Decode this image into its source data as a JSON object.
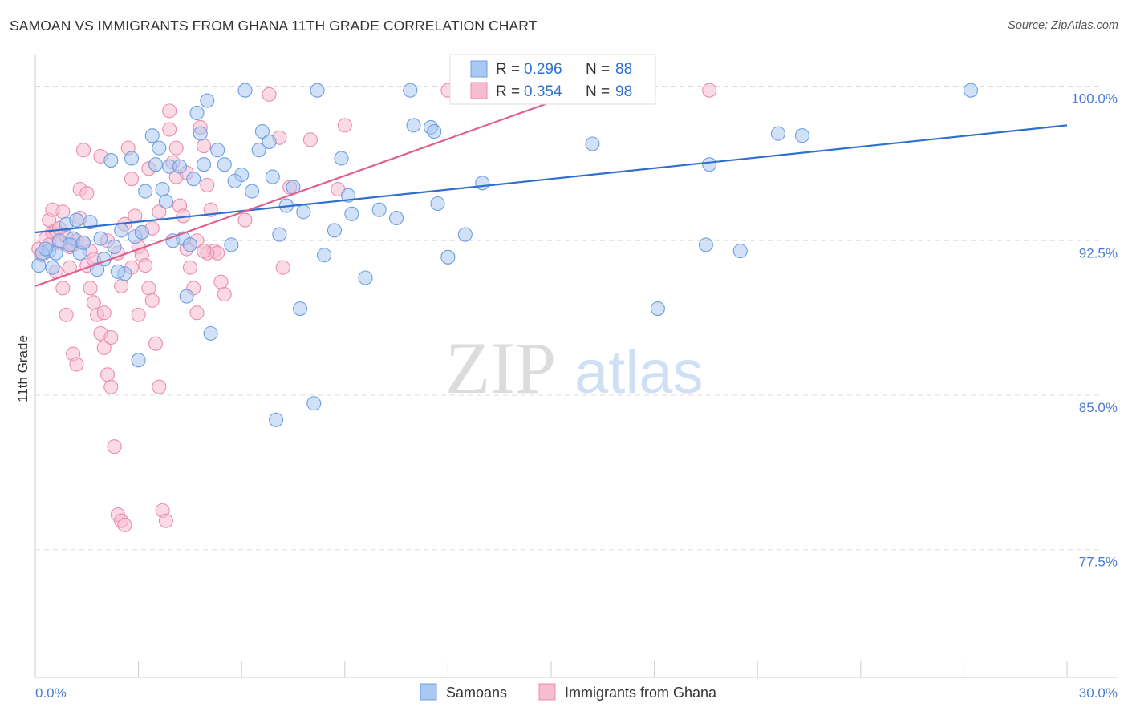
{
  "header": {
    "title": "SAMOAN VS IMMIGRANTS FROM GHANA 11TH GRADE CORRELATION CHART",
    "source": "Source: ZipAtlas.com"
  },
  "watermark": {
    "zip": "ZIP",
    "atlas": "atlas"
  },
  "colors": {
    "blue_fill": "#a9c8f2",
    "blue_stroke": "#6f9fe0",
    "blue_line": "#2f6fd0",
    "pink_fill": "#f6bcd0",
    "pink_stroke": "#ec8db0",
    "pink_line": "#e0608f",
    "tick_text": "#4a7bd0",
    "grid": "#dddddd"
  },
  "legend": {
    "rows": [
      {
        "r_label": "R =",
        "r_value": "0.296",
        "n_label": "N =",
        "n_value": "88",
        "color": "blue"
      },
      {
        "r_label": "R =",
        "r_value": "0.354",
        "n_label": "N =",
        "n_value": "98",
        "color": "pink"
      }
    ]
  },
  "chart_data": {
    "type": "scatter",
    "title": "SAMOAN VS IMMIGRANTS FROM GHANA 11TH GRADE CORRELATION CHART",
    "xlabel": "",
    "ylabel": "11th Grade",
    "xlim": [
      0,
      30
    ],
    "ylim": [
      71.3,
      101.5
    ],
    "x_ticks": [
      "0.0%",
      "30.0%"
    ],
    "y_ticks": [
      {
        "value": 100.0,
        "label": "100.0%"
      },
      {
        "value": 92.5,
        "label": "92.5%"
      },
      {
        "value": 85.0,
        "label": "85.0%"
      },
      {
        "value": 77.5,
        "label": "77.5%"
      }
    ],
    "grid": "horizontal dashed",
    "legend_position": "bottom",
    "series": [
      {
        "name": "Samoans",
        "color": "#6f9fe0",
        "r": 0.296,
        "n": 88,
        "trend": [
          [
            0,
            92.9
          ],
          [
            30,
            98.1
          ]
        ],
        "points": [
          [
            0.1,
            91.3
          ],
          [
            0.2,
            91.9
          ],
          [
            0.4,
            92.0
          ],
          [
            0.5,
            91.2
          ],
          [
            0.6,
            91.9
          ],
          [
            0.7,
            92.5
          ],
          [
            0.9,
            93.3
          ],
          [
            1.1,
            92.6
          ],
          [
            1.2,
            93.5
          ],
          [
            1.3,
            91.9
          ],
          [
            1.4,
            92.4
          ],
          [
            1.6,
            93.4
          ],
          [
            1.8,
            91.1
          ],
          [
            1.9,
            92.6
          ],
          [
            2.0,
            91.6
          ],
          [
            2.2,
            96.4
          ],
          [
            2.3,
            92.2
          ],
          [
            2.5,
            93.0
          ],
          [
            2.6,
            90.9
          ],
          [
            2.8,
            96.5
          ],
          [
            2.9,
            92.7
          ],
          [
            3.0,
            86.7
          ],
          [
            3.2,
            94.9
          ],
          [
            3.4,
            97.6
          ],
          [
            3.5,
            96.2
          ],
          [
            3.6,
            97.0
          ],
          [
            3.7,
            95.0
          ],
          [
            3.8,
            94.4
          ],
          [
            3.9,
            96.1
          ],
          [
            4.0,
            92.5
          ],
          [
            4.2,
            96.1
          ],
          [
            4.3,
            92.6
          ],
          [
            4.4,
            89.8
          ],
          [
            4.6,
            95.5
          ],
          [
            4.7,
            98.7
          ],
          [
            4.8,
            97.7
          ],
          [
            4.9,
            96.2
          ],
          [
            5.0,
            99.3
          ],
          [
            5.1,
            88.0
          ],
          [
            5.3,
            96.9
          ],
          [
            5.5,
            96.2
          ],
          [
            5.7,
            92.3
          ],
          [
            6.0,
            95.7
          ],
          [
            6.1,
            99.8
          ],
          [
            6.3,
            94.9
          ],
          [
            6.5,
            96.9
          ],
          [
            6.6,
            97.8
          ],
          [
            6.8,
            97.3
          ],
          [
            7.0,
            83.8
          ],
          [
            7.1,
            92.8
          ],
          [
            7.3,
            94.2
          ],
          [
            7.5,
            95.1
          ],
          [
            7.7,
            89.2
          ],
          [
            7.8,
            93.9
          ],
          [
            8.1,
            84.6
          ],
          [
            8.2,
            99.8
          ],
          [
            8.4,
            91.8
          ],
          [
            8.7,
            93.0
          ],
          [
            8.9,
            96.5
          ],
          [
            9.1,
            94.7
          ],
          [
            9.6,
            90.7
          ],
          [
            10.0,
            94.0
          ],
          [
            10.5,
            93.6
          ],
          [
            10.9,
            99.8
          ],
          [
            11.0,
            98.1
          ],
          [
            11.5,
            98.0
          ],
          [
            11.6,
            97.8
          ],
          [
            11.7,
            94.3
          ],
          [
            12.0,
            91.7
          ],
          [
            12.5,
            92.8
          ],
          [
            13.0,
            95.3
          ],
          [
            14.0,
            99.8
          ],
          [
            16.2,
            97.2
          ],
          [
            18.1,
            89.2
          ],
          [
            19.5,
            92.3
          ],
          [
            19.6,
            96.2
          ],
          [
            20.5,
            92.0
          ],
          [
            21.6,
            97.7
          ],
          [
            22.3,
            97.6
          ],
          [
            27.2,
            99.8
          ],
          [
            0.3,
            92.1
          ],
          [
            1.0,
            92.3
          ],
          [
            2.4,
            91.0
          ],
          [
            3.1,
            92.9
          ],
          [
            4.5,
            92.3
          ],
          [
            5.8,
            95.4
          ],
          [
            6.9,
            95.6
          ],
          [
            9.2,
            93.8
          ]
        ]
      },
      {
        "name": "Immigrants from Ghana",
        "color": "#ec8db0",
        "r": 0.354,
        "n": 98,
        "trend": [
          [
            0,
            90.3
          ],
          [
            16.3,
            100.0
          ]
        ],
        "points": [
          [
            0.1,
            92.1
          ],
          [
            0.2,
            91.8
          ],
          [
            0.3,
            92.6
          ],
          [
            0.4,
            93.5
          ],
          [
            0.5,
            92.9
          ],
          [
            0.6,
            93.0
          ],
          [
            0.7,
            92.4
          ],
          [
            0.8,
            93.9
          ],
          [
            0.9,
            92.7
          ],
          [
            1.0,
            92.2
          ],
          [
            1.1,
            92.3
          ],
          [
            1.2,
            92.5
          ],
          [
            1.3,
            93.6
          ],
          [
            1.4,
            92.4
          ],
          [
            1.5,
            91.3
          ],
          [
            1.6,
            90.2
          ],
          [
            1.7,
            89.5
          ],
          [
            1.8,
            88.9
          ],
          [
            1.9,
            88.0
          ],
          [
            2.0,
            87.3
          ],
          [
            2.1,
            86.0
          ],
          [
            2.2,
            85.4
          ],
          [
            2.3,
            82.5
          ],
          [
            2.4,
            79.2
          ],
          [
            2.5,
            78.9
          ],
          [
            2.6,
            78.7
          ],
          [
            2.7,
            97.0
          ],
          [
            2.8,
            95.5
          ],
          [
            2.9,
            93.7
          ],
          [
            3.0,
            92.2
          ],
          [
            3.1,
            91.8
          ],
          [
            3.2,
            91.3
          ],
          [
            3.3,
            90.2
          ],
          [
            3.4,
            89.6
          ],
          [
            3.5,
            87.5
          ],
          [
            3.6,
            85.4
          ],
          [
            3.7,
            79.4
          ],
          [
            3.8,
            78.9
          ],
          [
            3.9,
            97.9
          ],
          [
            4.0,
            96.3
          ],
          [
            4.1,
            95.6
          ],
          [
            4.2,
            94.2
          ],
          [
            4.3,
            93.7
          ],
          [
            4.4,
            92.1
          ],
          [
            4.5,
            91.2
          ],
          [
            4.6,
            90.2
          ],
          [
            4.7,
            89.0
          ],
          [
            4.8,
            98.0
          ],
          [
            4.9,
            97.1
          ],
          [
            5.0,
            95.2
          ],
          [
            5.1,
            94.0
          ],
          [
            5.2,
            92.0
          ],
          [
            5.3,
            91.9
          ],
          [
            5.4,
            90.5
          ],
          [
            5.5,
            89.9
          ],
          [
            0.5,
            94.0
          ],
          [
            0.6,
            91.0
          ],
          [
            0.8,
            90.2
          ],
          [
            0.9,
            88.9
          ],
          [
            1.1,
            87.0
          ],
          [
            1.2,
            86.5
          ],
          [
            1.3,
            95.0
          ],
          [
            1.4,
            96.9
          ],
          [
            1.5,
            94.8
          ],
          [
            1.6,
            92.0
          ],
          [
            1.7,
            91.6
          ],
          [
            2.0,
            89.0
          ],
          [
            2.2,
            87.8
          ],
          [
            2.5,
            90.3
          ],
          [
            2.8,
            91.2
          ],
          [
            3.1,
            92.9
          ],
          [
            3.3,
            96.0
          ],
          [
            3.6,
            93.9
          ],
          [
            3.9,
            98.8
          ],
          [
            4.1,
            97.0
          ],
          [
            4.4,
            95.8
          ],
          [
            4.7,
            92.5
          ],
          [
            5.0,
            91.9
          ],
          [
            6.1,
            93.5
          ],
          [
            6.8,
            99.6
          ],
          [
            7.1,
            97.5
          ],
          [
            7.2,
            91.2
          ],
          [
            7.4,
            95.1
          ],
          [
            8.0,
            97.4
          ],
          [
            8.8,
            95.0
          ],
          [
            9.0,
            98.1
          ],
          [
            12.0,
            99.8
          ],
          [
            19.6,
            99.8
          ],
          [
            2.1,
            92.5
          ],
          [
            2.6,
            93.3
          ],
          [
            3.0,
            88.9
          ],
          [
            1.0,
            91.2
          ],
          [
            0.4,
            92.3
          ],
          [
            0.7,
            93.1
          ],
          [
            1.9,
            96.6
          ],
          [
            2.4,
            91.9
          ],
          [
            3.4,
            93.1
          ],
          [
            4.9,
            92.0
          ]
        ]
      }
    ]
  }
}
